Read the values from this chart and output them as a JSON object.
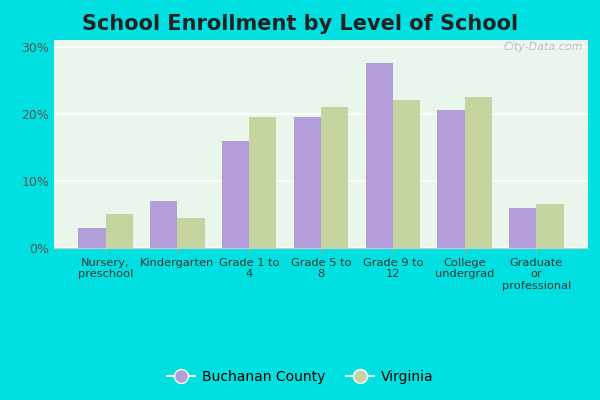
{
  "title": "School Enrollment by Level of School",
  "categories": [
    "Nursery,\npreschool",
    "Kindergarten",
    "Grade 1 to\n4",
    "Grade 5 to\n8",
    "Grade 9 to\n12",
    "College\nundergrad",
    "Graduate\nor\nprofessional"
  ],
  "buchanan_values": [
    3.0,
    7.0,
    16.0,
    19.5,
    27.5,
    20.5,
    6.0
  ],
  "virginia_values": [
    5.0,
    4.5,
    19.5,
    21.0,
    22.0,
    22.5,
    6.5
  ],
  "buchanan_color": "#b39ddb",
  "virginia_color": "#c5d5a0",
  "ylim": [
    0,
    31
  ],
  "yticks": [
    0,
    10,
    20,
    30
  ],
  "ytick_labels": [
    "0%",
    "10%",
    "20%",
    "30%"
  ],
  "background_color": "#eaf5ec",
  "outer_background": "#00e0e0",
  "legend_labels": [
    "Buchanan County",
    "Virginia"
  ],
  "title_fontsize": 15,
  "bar_width": 0.38,
  "watermark": "City-Data.com"
}
